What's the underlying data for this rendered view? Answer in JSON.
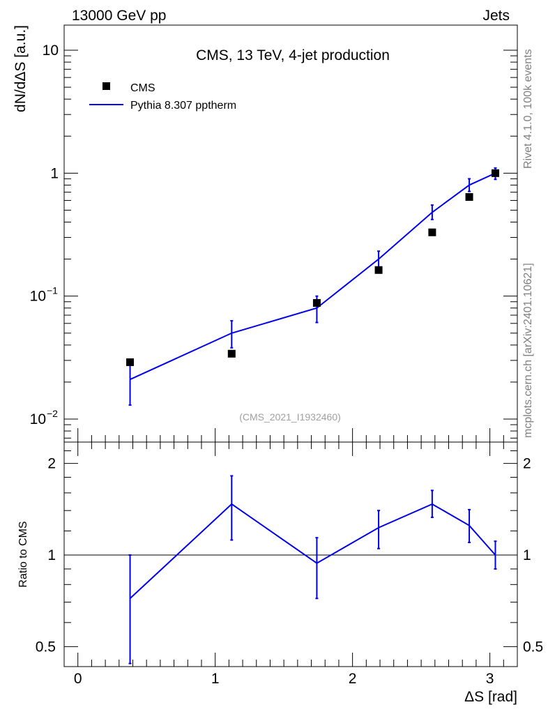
{
  "header": {
    "left_label": "13000 GeV pp",
    "right_label": "Jets",
    "side_rivet": "Rivet 4.1.0,  100k events",
    "side_mcplots": "mcplots.cern.ch [arXiv:2401.10621]"
  },
  "chart_data": [
    {
      "panel": "main",
      "type": "scatter",
      "title": "CMS, 13 TeV, 4-jet production",
      "watermark": "(CMS_2021_I1932460)",
      "ylabel": "dN/dΔS [a.u.]",
      "yscale": "log",
      "xlim": [
        -0.1,
        3.2
      ],
      "ylim": [
        0.0065,
        16
      ],
      "y_ticks": [
        {
          "value": 10,
          "label": "10"
        },
        {
          "value": 1,
          "label": "1"
        },
        {
          "value": 0.1,
          "label": "10",
          "exp": "−1"
        },
        {
          "value": 0.01,
          "label": "10",
          "exp": "−2"
        }
      ],
      "legend_position": "top-left",
      "series": [
        {
          "name": "CMS",
          "kind": "markers",
          "color": "#000000",
          "x": [
            0.38,
            1.12,
            1.74,
            2.19,
            2.58,
            2.85,
            3.04
          ],
          "y": [
            0.029,
            0.034,
            0.088,
            0.163,
            0.33,
            0.64,
            1.0
          ]
        },
        {
          "name": "Pythia 8.307 pptherm",
          "kind": "line",
          "color": "#0000ee",
          "x": [
            0.38,
            1.12,
            1.74,
            2.19,
            2.58,
            2.85,
            3.04
          ],
          "y": [
            0.021,
            0.05,
            0.08,
            0.2,
            0.48,
            0.8,
            1.0
          ],
          "err_low": [
            0.013,
            0.038,
            0.061,
            0.168,
            0.42,
            0.71,
            0.89
          ],
          "err_high": [
            0.029,
            0.063,
            0.1,
            0.232,
            0.55,
            0.9,
            1.1
          ]
        }
      ]
    },
    {
      "panel": "ratio",
      "type": "line",
      "xlabel": "ΔS [rad]",
      "ylabel": "Ratio to CMS",
      "yscale": "log",
      "xlim": [
        -0.1,
        3.2
      ],
      "ylim": [
        0.43,
        2.35
      ],
      "x_ticks": [
        0,
        1,
        2,
        3
      ],
      "y_ticks": [
        0.5,
        1,
        2
      ],
      "reference": 1,
      "series": [
        {
          "name": "Pythia 8.307 pptherm",
          "color": "#0000ee",
          "x": [
            0.38,
            1.12,
            1.74,
            2.19,
            2.58,
            2.85,
            3.04
          ],
          "y": [
            0.72,
            1.47,
            0.94,
            1.23,
            1.47,
            1.25,
            1.0
          ],
          "err_low": [
            0.44,
            1.12,
            0.72,
            1.05,
            1.33,
            1.1,
            0.9
          ],
          "err_high": [
            1.0,
            1.82,
            1.14,
            1.4,
            1.63,
            1.41,
            1.11
          ]
        }
      ]
    }
  ]
}
